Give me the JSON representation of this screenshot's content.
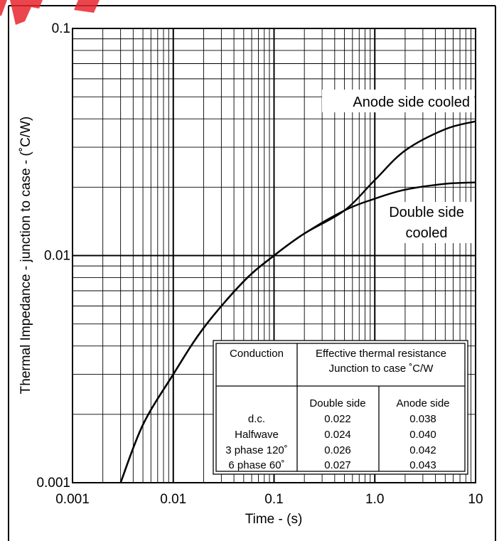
{
  "chart_data": {
    "type": "line",
    "title": "",
    "xlabel": "Time - (s)",
    "ylabel": "Thermal Impedance - junction to case - (˚C/W)",
    "x_scale": "log",
    "y_scale": "log",
    "xlim": [
      0.001,
      10
    ],
    "ylim": [
      0.001,
      0.1
    ],
    "grid": true,
    "x_tick_labels": [
      "0.001",
      "0.01",
      "0.1",
      "1.0",
      "10"
    ],
    "y_tick_labels": [
      "0.001",
      "0.01",
      "0.1"
    ],
    "series": [
      {
        "name": "Anode side cooled",
        "x": [
          0.003,
          0.005,
          0.01,
          0.02,
          0.05,
          0.1,
          0.2,
          0.5,
          1,
          2,
          5,
          10
        ],
        "y": [
          0.001,
          0.0018,
          0.003,
          0.0048,
          0.0077,
          0.01,
          0.0125,
          0.0158,
          0.0215,
          0.029,
          0.036,
          0.039
        ]
      },
      {
        "name": "Double side cooled",
        "x": [
          0.003,
          0.005,
          0.01,
          0.02,
          0.05,
          0.1,
          0.2,
          0.5,
          1,
          2,
          5,
          10
        ],
        "y": [
          0.001,
          0.0018,
          0.003,
          0.0048,
          0.0077,
          0.01,
          0.0125,
          0.0158,
          0.0178,
          0.0195,
          0.0207,
          0.021
        ]
      }
    ],
    "annotations": [
      {
        "lines": [
          "Anode side cooled"
        ],
        "series": "Anode side cooled"
      },
      {
        "lines": [
          "Double side",
          "cooled"
        ],
        "series": "Double side cooled"
      }
    ],
    "table": {
      "header_conduction": "Conduction",
      "header_resistance": [
        "Effective thermal resistance",
        "Junction to case ˚C/W"
      ],
      "col_double": "Double side",
      "col_anode": "Anode side",
      "rows": [
        {
          "conduction": "d.c.",
          "double": "0.022",
          "anode": "0.038"
        },
        {
          "conduction": "Halfwave",
          "double": "0.024",
          "anode": "0.040"
        },
        {
          "conduction": "3 phase 120˚",
          "double": "0.026",
          "anode": "0.042"
        },
        {
          "conduction": "6 phase 60˚",
          "double": "0.027",
          "anode": "0.043"
        }
      ]
    },
    "colors": {
      "line": "#000000",
      "grid": "#000000",
      "background": "#ffffff"
    }
  }
}
